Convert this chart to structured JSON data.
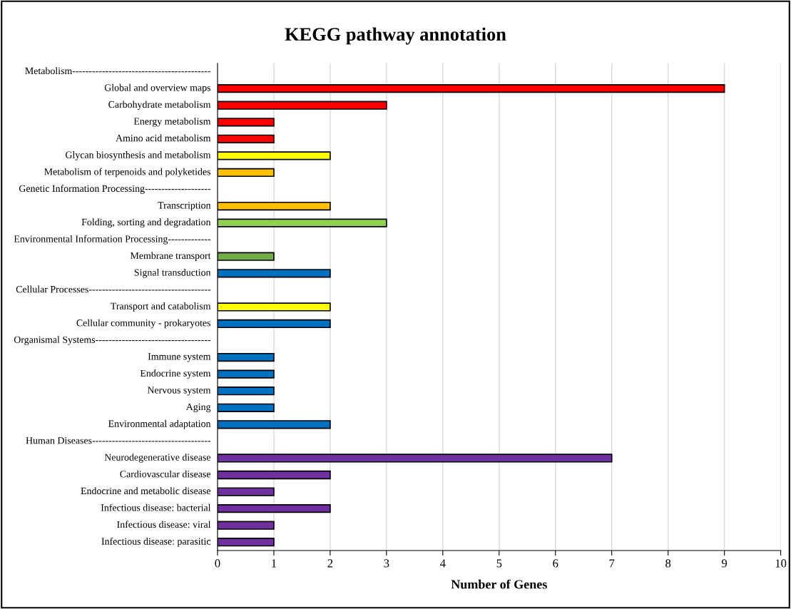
{
  "chart_data": {
    "type": "bar",
    "orientation": "horizontal",
    "title": "KEGG pathway annotation",
    "xlabel": "Number of Genes",
    "categories": [
      "Metabolism------------------------------------------",
      "Global and overview maps",
      "Carbohydrate metabolism",
      "Energy metabolism",
      "Amino acid metabolism",
      "Glycan biosynthesis and metabolism",
      "Metabolism of terpenoids and polyketides",
      "Genetic Information Processing--------------------",
      "Transcription",
      "Folding, sorting and degradation",
      "Environmental Information Processing-------------",
      "Membrane transport",
      "Signal transduction",
      "Cellular Processes-------------------------------------",
      "Transport and catabolism",
      "Cellular community - prokaryotes",
      "Organismal Systems-----------------------------------",
      "Immune system",
      "Endocrine system",
      "Nervous system",
      "Aging",
      "Environmental adaptation",
      "Human Diseases------------------------------------",
      "Neurodegenerative disease",
      "Cardiovascular disease",
      "Endocrine and metabolic disease",
      "Infectious disease: bacterial",
      "Infectious disease: viral",
      "Infectious disease: parasitic"
    ],
    "values": [
      null,
      9,
      3,
      1,
      1,
      2,
      1,
      null,
      2,
      3,
      null,
      1,
      2,
      null,
      2,
      2,
      null,
      1,
      1,
      1,
      1,
      2,
      null,
      7,
      2,
      1,
      2,
      1,
      1
    ],
    "colors": [
      null,
      "#ff0000",
      "#ff0000",
      "#ff0000",
      "#ff0000",
      "#ffff00",
      "#ffc000",
      null,
      "#ffc000",
      "#92d050",
      null,
      "#70ad47",
      "#0070c0",
      null,
      "#ffff00",
      "#0070c0",
      null,
      "#0070c0",
      "#0070c0",
      "#0070c0",
      "#0070c0",
      "#0070c0",
      null,
      "#7030a0",
      "#7030a0",
      "#7030a0",
      "#7030a0",
      "#7030a0",
      "#7030a0"
    ],
    "xlim": [
      0,
      10
    ],
    "xticks": [
      0,
      1,
      2,
      3,
      4,
      5,
      6,
      7,
      8,
      9,
      10
    ],
    "grid": "x"
  }
}
